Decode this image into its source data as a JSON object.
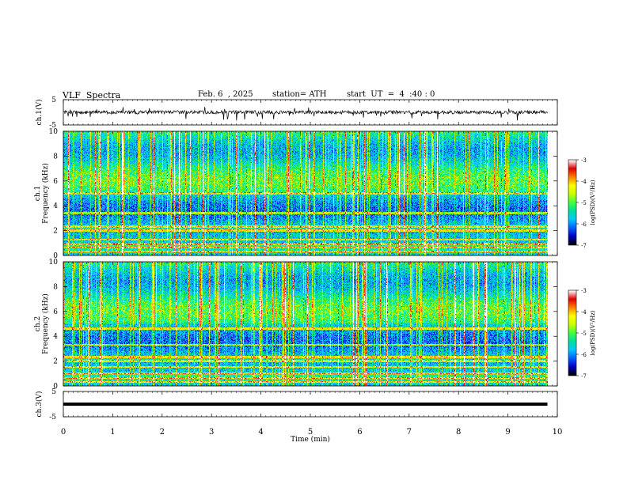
{
  "header": {
    "title": "VLF  Spectra",
    "date": "Feb. 6  , 2025",
    "station": "station= ATH",
    "start": "start  UT  =  4  :40 : 0"
  },
  "chart_data": [
    {
      "type": "line",
      "panel": "ch1-waveform",
      "ylabel": "ch.1(V)",
      "ylim": [
        -5,
        5
      ],
      "yticks": [
        "5",
        "-5"
      ],
      "xlim": [
        0,
        10
      ],
      "description_values": {
        "baseline": 0,
        "typical_range": [
          -0.8,
          0.8
        ],
        "spike_range": [
          -3,
          2
        ]
      }
    },
    {
      "type": "heatmap",
      "panel": "ch1-spectrogram",
      "ylabel": "ch.1\nFrequency (kHz)",
      "ylim": [
        0,
        10
      ],
      "yticks": [
        "0",
        "2",
        "4",
        "6",
        "8",
        "10"
      ],
      "xlim": [
        0,
        10
      ],
      "zlim": [
        -7,
        -3
      ],
      "colorbar_label": "log(PSD)(V²/Hz)",
      "colorbar_ticks": [
        "-3",
        "-4",
        "-5",
        "-6",
        "-7"
      ],
      "tonal_lines_khz": [
        0.3,
        0.6,
        0.9,
        1.25,
        2.0,
        2.3,
        3.4,
        5.0
      ]
    },
    {
      "type": "heatmap",
      "panel": "ch2-spectrogram",
      "ylabel": "ch.2\nFrequency (kHz)",
      "ylim": [
        0,
        10
      ],
      "yticks": [
        "0",
        "2",
        "4",
        "6",
        "8",
        "10"
      ],
      "xlim": [
        0,
        10
      ],
      "zlim": [
        -7,
        -3
      ],
      "colorbar_label": "log(PSD)(V²/Hz)",
      "colorbar_ticks": [
        "-3",
        "-4",
        "-5",
        "-6",
        "-7"
      ],
      "tonal_lines_khz": [
        0.3,
        0.6,
        1.0,
        1.5,
        2.0,
        2.3,
        3.3,
        4.6
      ]
    },
    {
      "type": "line",
      "panel": "ch3-waveform",
      "ylabel": "ch.3(V)",
      "ylim": [
        -5,
        5
      ],
      "yticks": [
        "5",
        "-5"
      ],
      "xlim": [
        0,
        10
      ],
      "description_values": {
        "baseline": 0
      }
    }
  ],
  "xaxis": {
    "label": "Time  (min)",
    "ticks": [
      "0",
      "1",
      "2",
      "3",
      "4",
      "5",
      "6",
      "7",
      "8",
      "9",
      "10"
    ],
    "data_end_min": 9.8
  },
  "colors": {
    "frame": "#000000",
    "colormap": [
      "#000000",
      "#0000c8",
      "#0060ff",
      "#00c8ff",
      "#00e0a0",
      "#40ff40",
      "#c8ff00",
      "#ffff00",
      "#ff8000",
      "#e00000",
      "#ffffff"
    ]
  }
}
